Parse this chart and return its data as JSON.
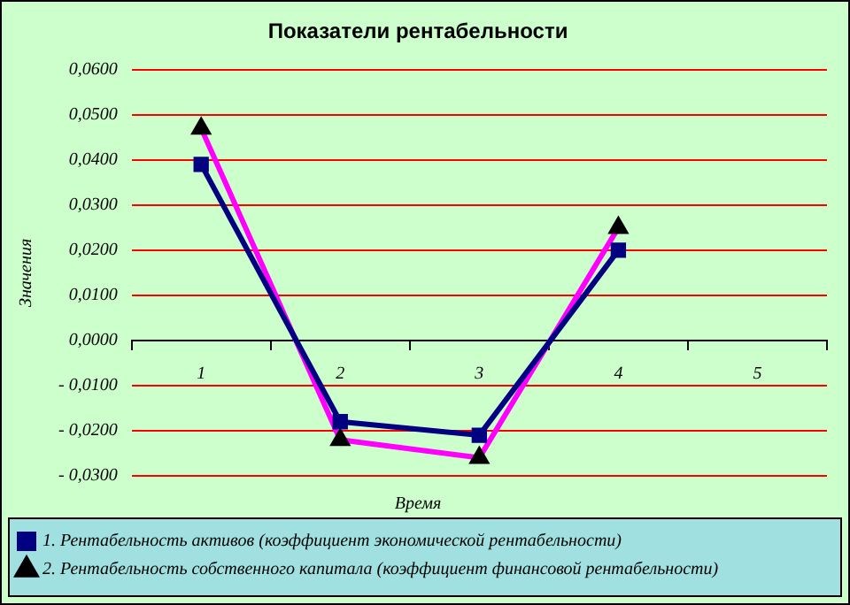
{
  "chart_data": {
    "type": "line",
    "title": "Показатели рентабельности",
    "xlabel": "Время",
    "ylabel": "Значения",
    "categories": [
      "1",
      "2",
      "3",
      "4",
      "5"
    ],
    "series": [
      {
        "name": "1. Рентабельность активов (коэффициент экономической рентабельности)",
        "color": "#000080",
        "marker": "square",
        "values": [
          0.039,
          -0.018,
          -0.021,
          0.02,
          null
        ]
      },
      {
        "name": "2. Рентабельность собственного капитала (коэффициент финансовой рентабельности)",
        "color": "#ff00ff",
        "marker": "triangle",
        "values": [
          0.047,
          -0.022,
          -0.026,
          0.025,
          null
        ]
      }
    ],
    "ylim": [
      -0.03,
      0.06
    ],
    "yticks": [
      {
        "value": -0.03,
        "label": "- 0,0300"
      },
      {
        "value": -0.02,
        "label": "- 0,0200"
      },
      {
        "value": -0.01,
        "label": "- 0,0100"
      },
      {
        "value": 0,
        "label": "0,0000"
      },
      {
        "value": 0.01,
        "label": "0,0100"
      },
      {
        "value": 0.02,
        "label": "0,0200"
      },
      {
        "value": 0.03,
        "label": "0,0300"
      },
      {
        "value": 0.04,
        "label": "0,0400"
      },
      {
        "value": 0.05,
        "label": "0,0500"
      },
      {
        "value": 0.06,
        "label": "0,0600"
      }
    ],
    "grid": "y",
    "legend": "bottom",
    "line_style": "solid"
  }
}
